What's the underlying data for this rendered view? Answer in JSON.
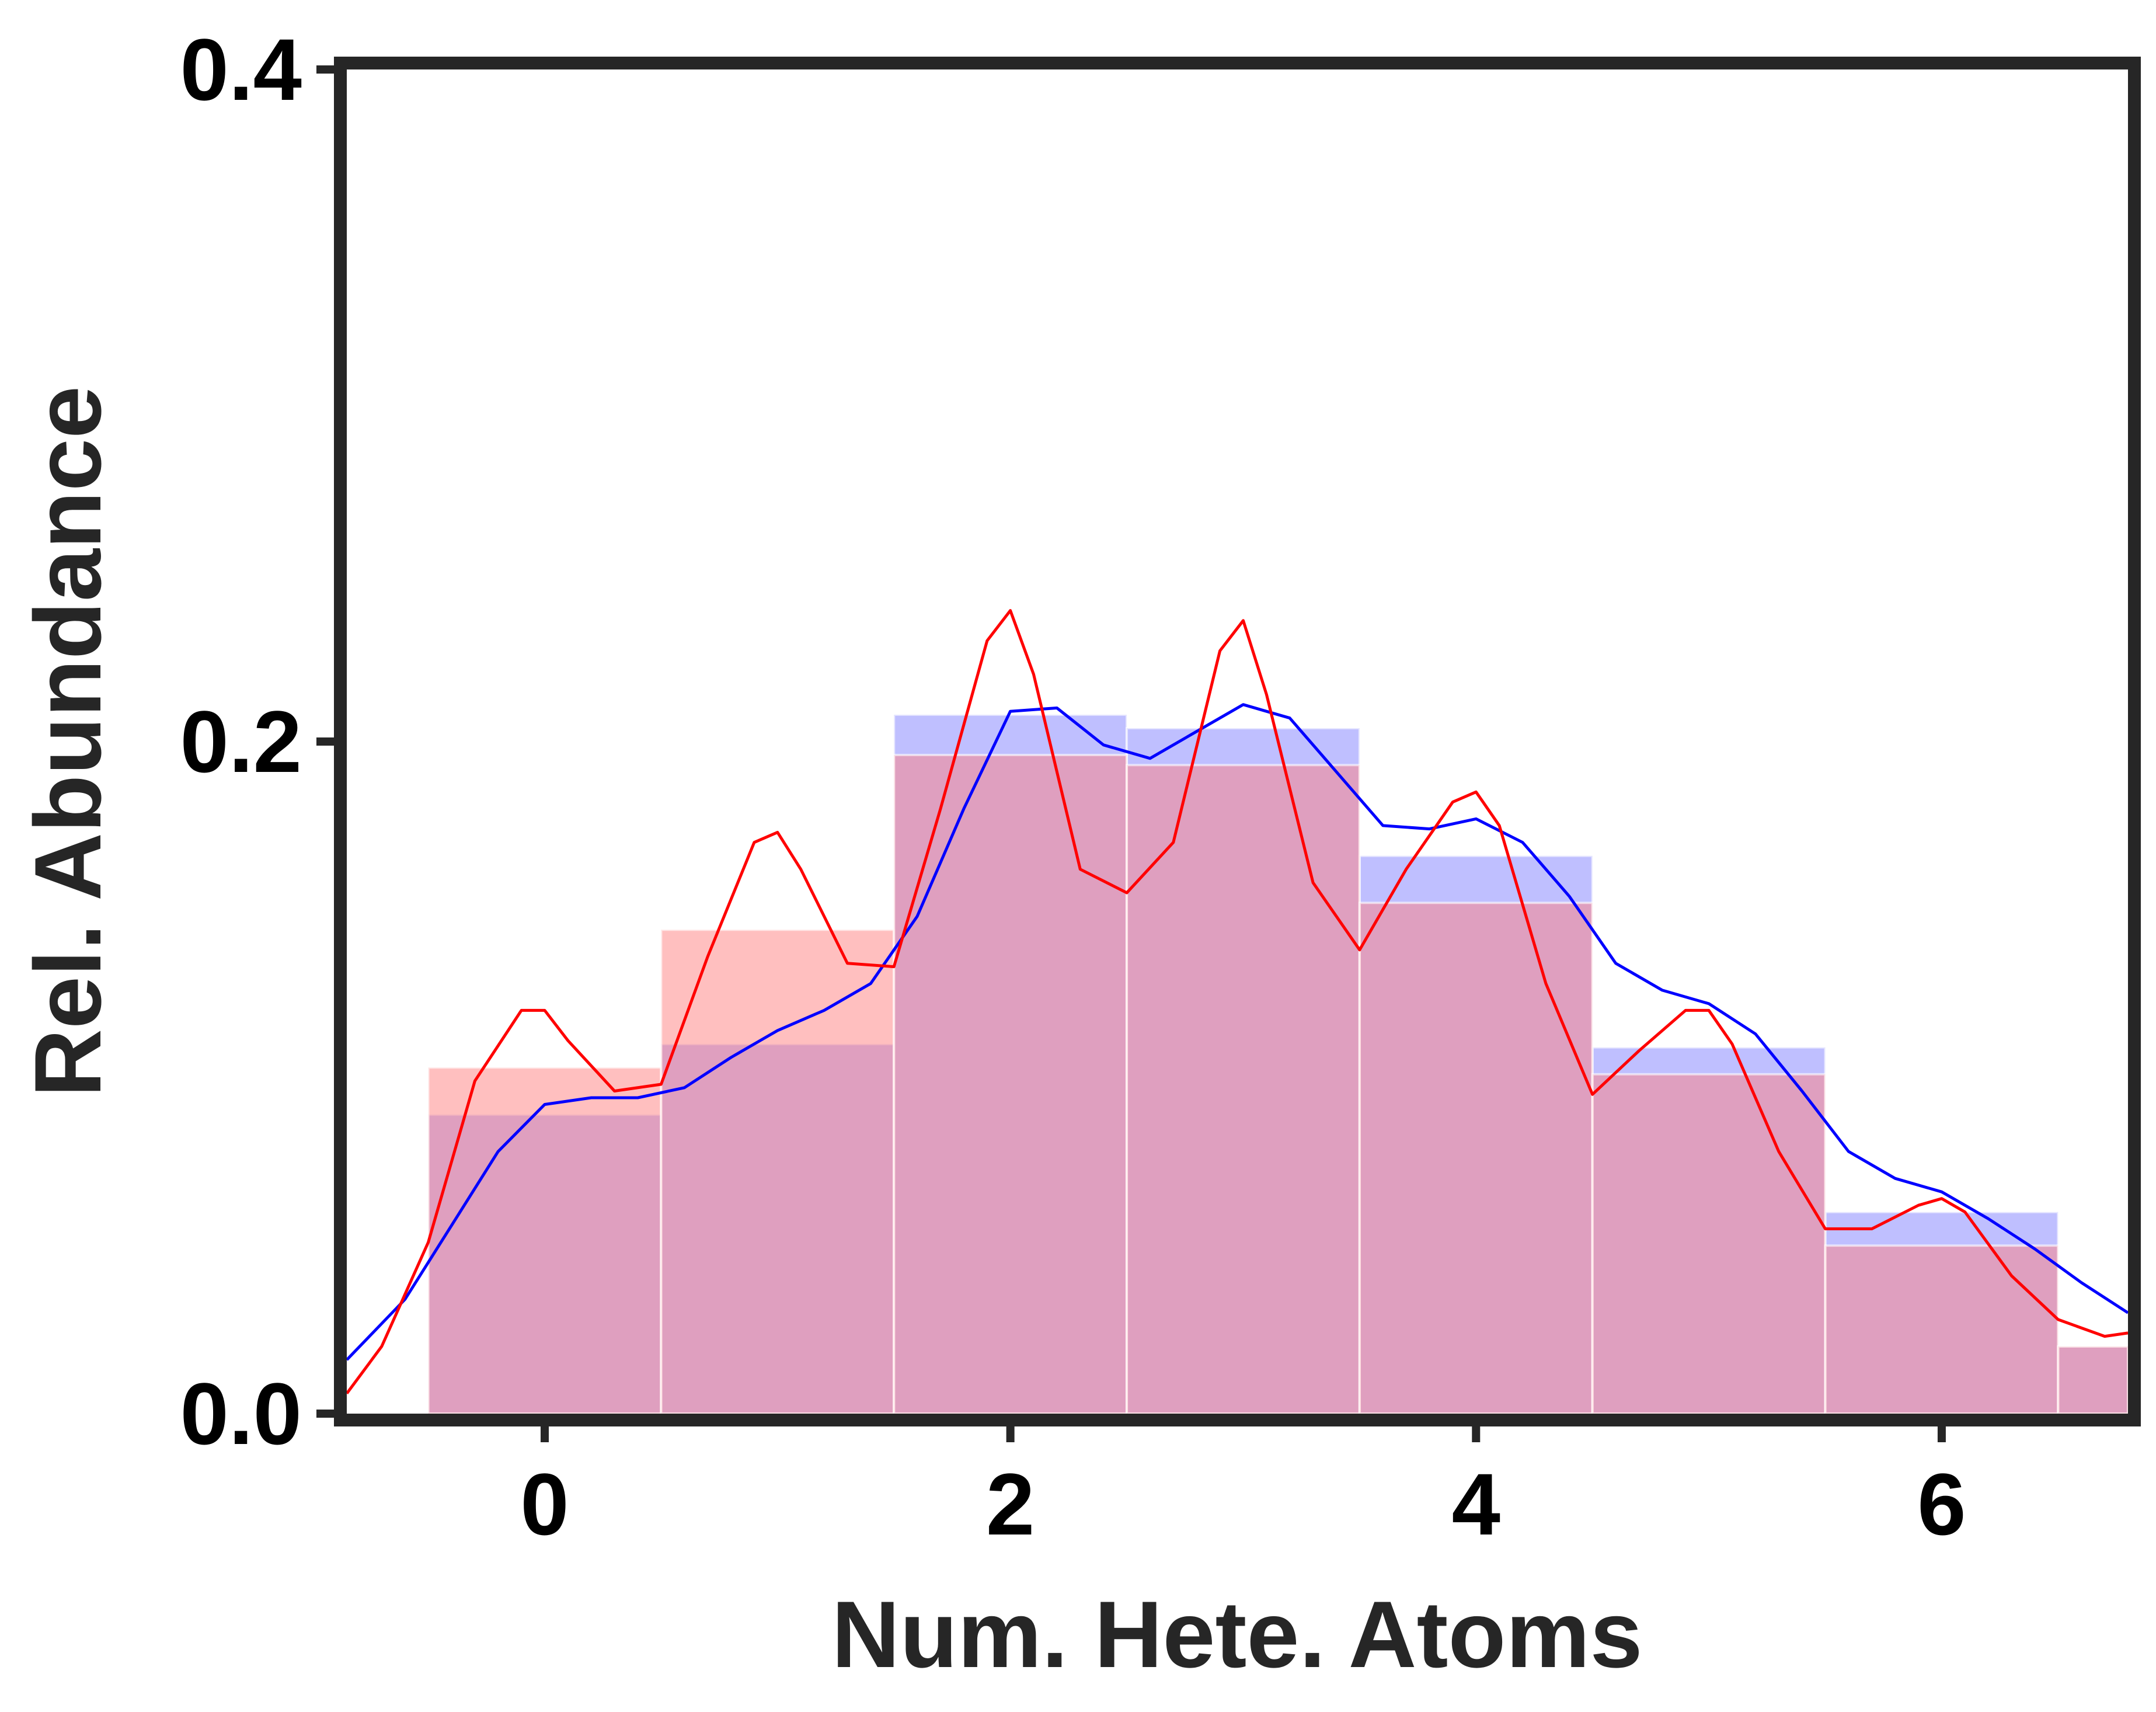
{
  "chart_data": {
    "type": "bar",
    "title": "",
    "xlabel": "Num. Hete. Atoms",
    "ylabel": "Rel. Abundance",
    "xlim": [
      -0.85,
      6.8
    ],
    "ylim": [
      0.0,
      0.4
    ],
    "x_ticks": [
      {
        "value": 0,
        "label": "0"
      },
      {
        "value": 2,
        "label": "2"
      },
      {
        "value": 4,
        "label": "4"
      },
      {
        "value": 6,
        "label": "6"
      }
    ],
    "y_ticks": [
      {
        "value": 0.0,
        "label": "0.0"
      },
      {
        "value": 0.2,
        "label": "0.2"
      },
      {
        "value": 0.4,
        "label": "0.4"
      }
    ],
    "grid": false,
    "legend": "none",
    "bin_width": 1,
    "categories": [
      0,
      1,
      2,
      3,
      4,
      5,
      6,
      7
    ],
    "series": [
      {
        "color": "#0000ff",
        "bar_color": "#8080ff",
        "values": [
          0.089,
          0.11,
          0.208,
          0.204,
          0.166,
          0.109,
          0.06,
          0.02
        ],
        "kde": {
          "x": [
            -0.85,
            -0.6,
            -0.4,
            -0.2,
            0.0,
            0.2,
            0.4,
            0.6,
            0.8,
            1.0,
            1.2,
            1.4,
            1.6,
            1.8,
            2.0,
            2.2,
            2.4,
            2.6,
            2.8,
            3.0,
            3.2,
            3.4,
            3.6,
            3.8,
            4.0,
            4.2,
            4.4,
            4.6,
            4.8,
            5.0,
            5.2,
            5.4,
            5.6,
            5.8,
            6.0,
            6.2,
            6.4,
            6.6,
            6.8
          ],
          "y": [
            0.016,
            0.034,
            0.056,
            0.078,
            0.092,
            0.094,
            0.094,
            0.097,
            0.106,
            0.114,
            0.12,
            0.128,
            0.148,
            0.18,
            0.209,
            0.21,
            0.199,
            0.195,
            0.203,
            0.211,
            0.207,
            0.191,
            0.175,
            0.174,
            0.177,
            0.17,
            0.154,
            0.134,
            0.126,
            0.122,
            0.113,
            0.096,
            0.078,
            0.07,
            0.066,
            0.058,
            0.049,
            0.039,
            0.03
          ]
        }
      },
      {
        "color": "#ff0000",
        "bar_color": "#ff7f7f",
        "values": [
          0.103,
          0.144,
          0.196,
          0.193,
          0.152,
          0.101,
          0.05,
          0.02
        ],
        "kde": {
          "x": [
            -0.85,
            -0.7,
            -0.5,
            -0.3,
            -0.1,
            0.0,
            0.1,
            0.3,
            0.5,
            0.7,
            0.9,
            1.0,
            1.1,
            1.3,
            1.5,
            1.7,
            1.9,
            2.0,
            2.1,
            2.3,
            2.5,
            2.7,
            2.9,
            3.0,
            3.1,
            3.3,
            3.5,
            3.7,
            3.9,
            4.0,
            4.1,
            4.3,
            4.5,
            4.7,
            4.9,
            5.0,
            5.1,
            5.3,
            5.5,
            5.7,
            5.9,
            6.0,
            6.1,
            6.3,
            6.5,
            6.7,
            6.8
          ],
          "y": [
            0.006,
            0.02,
            0.051,
            0.099,
            0.12,
            0.12,
            0.111,
            0.096,
            0.098,
            0.136,
            0.17,
            0.173,
            0.162,
            0.134,
            0.133,
            0.18,
            0.23,
            0.239,
            0.22,
            0.162,
            0.155,
            0.17,
            0.227,
            0.236,
            0.214,
            0.158,
            0.138,
            0.162,
            0.182,
            0.185,
            0.175,
            0.128,
            0.095,
            0.108,
            0.12,
            0.12,
            0.11,
            0.078,
            0.055,
            0.055,
            0.062,
            0.064,
            0.06,
            0.041,
            0.028,
            0.023,
            0.024
          ]
        }
      }
    ]
  }
}
